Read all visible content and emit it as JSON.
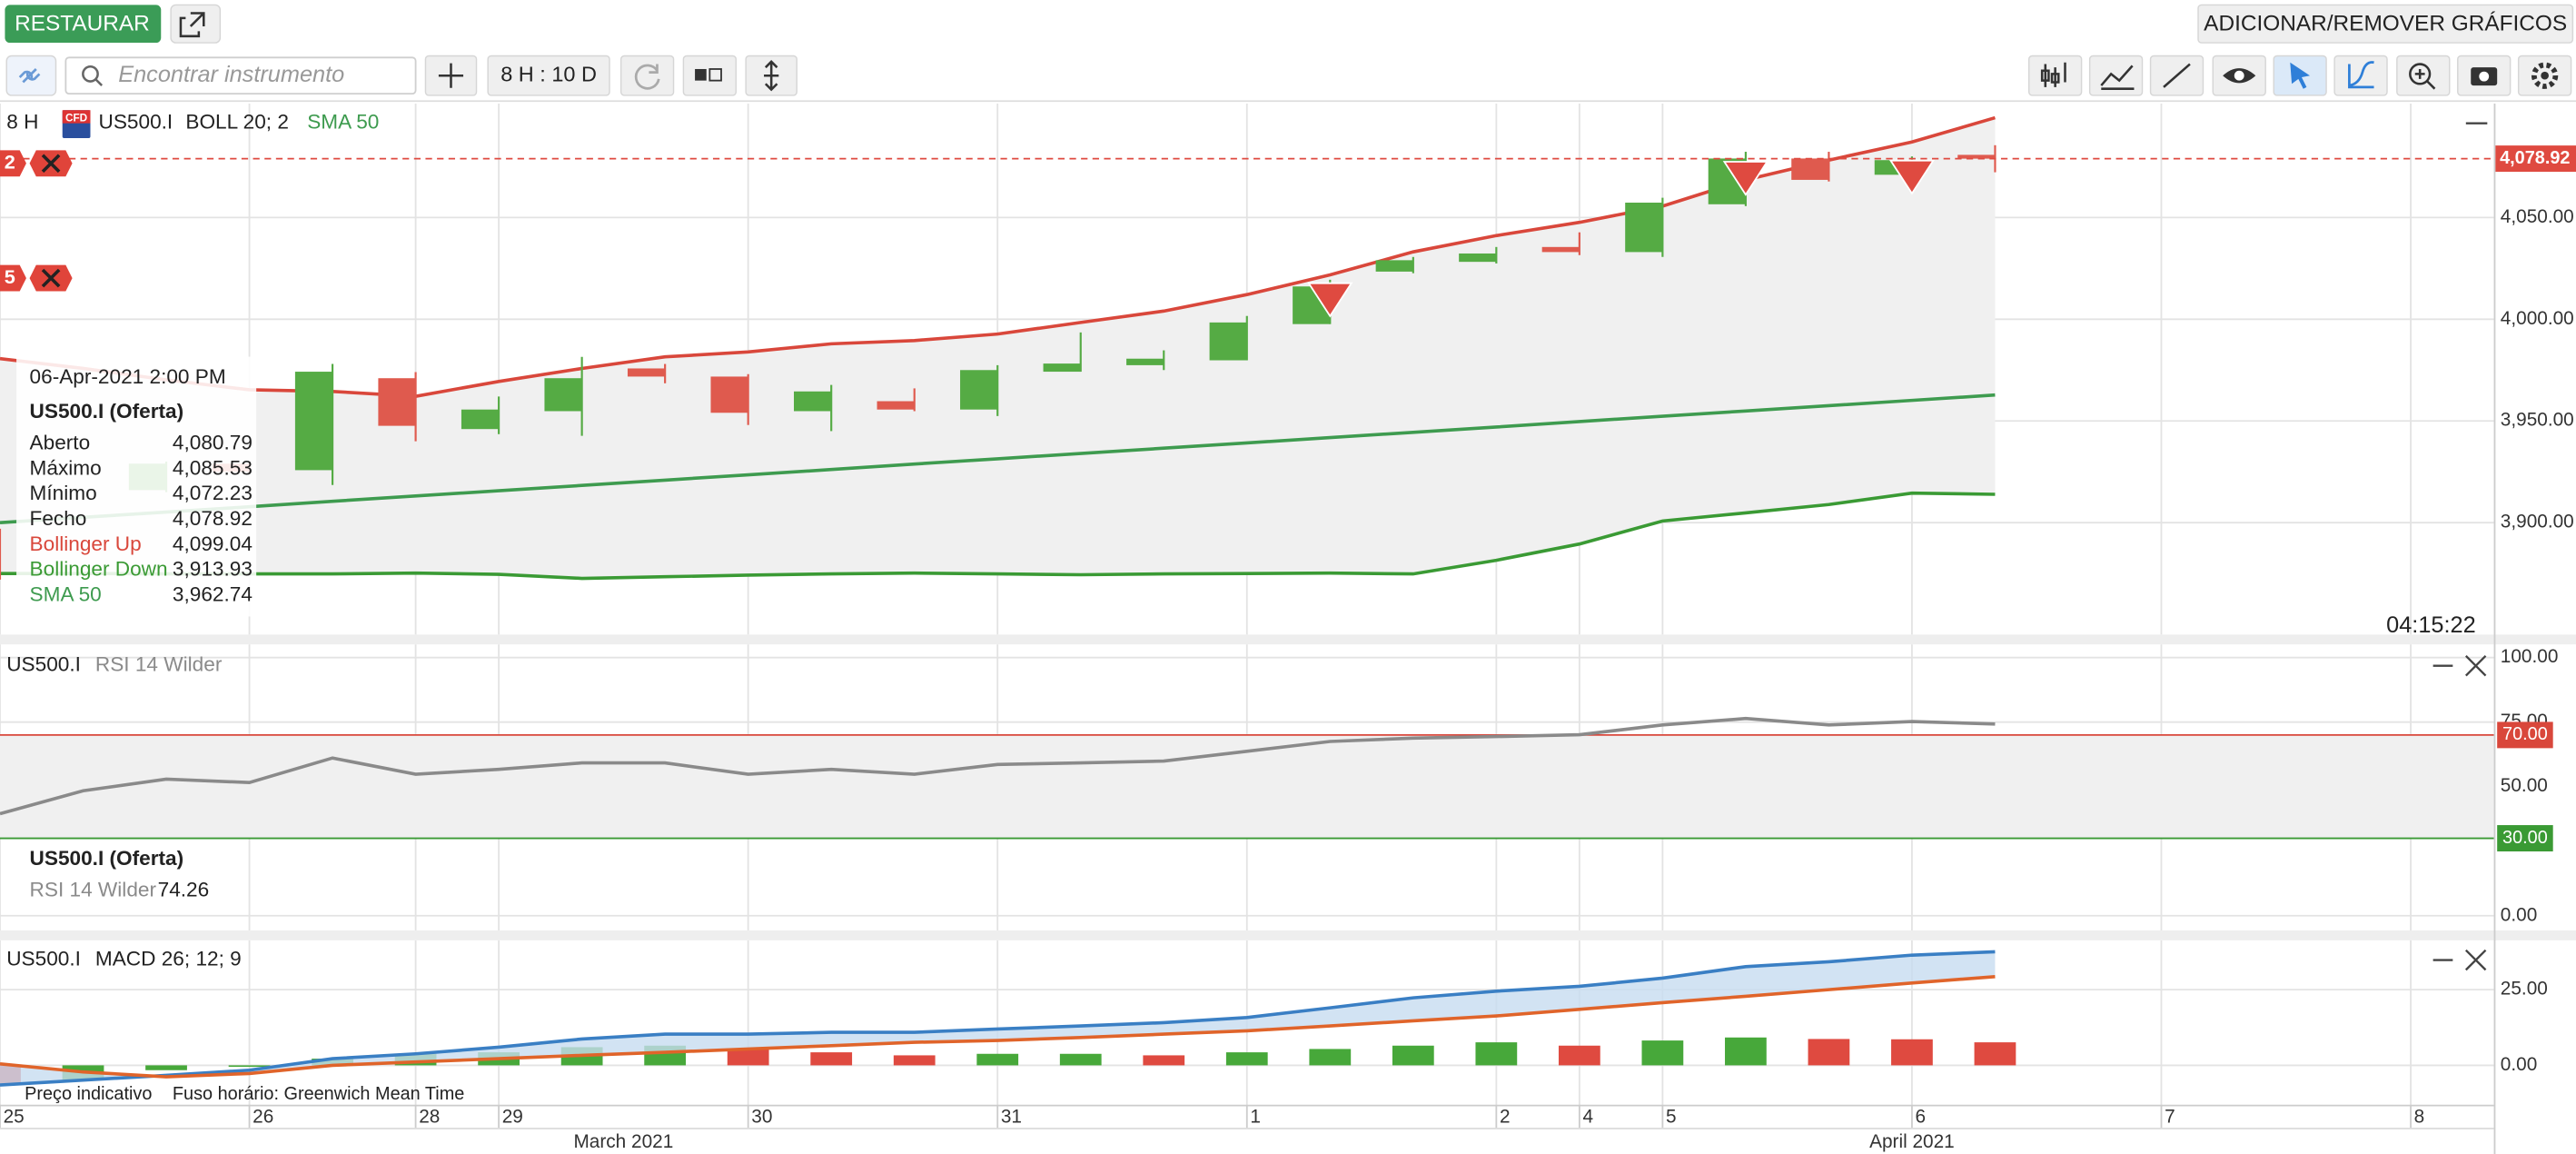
{
  "toolbar": {
    "restore": "RESTAURAR",
    "add_remove": "ADICIONAR/REMOVER GRÁFICOS",
    "search_placeholder": "Encontrar instrumento",
    "timeframe": "8 H : 10 D"
  },
  "chart_data": [
    {
      "type": "candlestick",
      "period": "8 H",
      "instrument_badge": "CFD",
      "symbol": "US500.I",
      "indicator": "BOLL 20; 2",
      "xlim": [
        -3,
        27
      ],
      "ylim": [
        3845,
        4106
      ],
      "yticks": [
        {
          "value": 4050,
          "label": "4,050.00"
        },
        {
          "value": 4000,
          "label": "4,000.00"
        },
        {
          "value": 3950,
          "label": "3,950.00"
        },
        {
          "value": 3900,
          "label": "3,900.00"
        }
      ],
      "grid": true,
      "candles": {
        "x": [
          -3,
          -1,
          0,
          1,
          2,
          3,
          4,
          5,
          6,
          7,
          8,
          9,
          10,
          11,
          12,
          13,
          14,
          15,
          16,
          17,
          18,
          19,
          20,
          21
        ],
        "open": [
          3894,
          3916,
          3929,
          3925.8,
          3971,
          3946,
          3954.8,
          3975.8,
          3971.8,
          3954.8,
          3959.7,
          3955.6,
          3974.2,
          3977.4,
          3979.8,
          3997.6,
          4023.4,
          4028.2,
          4035.5,
          4033,
          4056.5,
          4079,
          4071,
          4080.79
        ],
        "high": [
          3897,
          3930,
          3930,
          3978,
          3974,
          3962,
          3981.5,
          3978,
          3973,
          3967.7,
          3966,
          3977.4,
          3993.5,
          3984.7,
          4001.6,
          4019.4,
          4030.6,
          4035.5,
          4042.7,
          4059.7,
          4082.3,
          4082.3,
          4080,
          4085.53
        ],
        "low": [
          3872,
          3915,
          3924,
          3918.5,
          3940,
          3943.5,
          3942.7,
          3968.5,
          3948,
          3945,
          3954.8,
          3952.4,
          3974.2,
          3975,
          3979.8,
          3997.6,
          4022.6,
          4027.4,
          4031.5,
          4030.6,
          4055.6,
          4067.7,
          4067,
          4072.23
        ],
        "close": [
          3874,
          3929,
          3925,
          3974.2,
          3947.6,
          3955.6,
          3971,
          3971.8,
          3954,
          3964.5,
          3955.6,
          3975,
          3978.2,
          3980.6,
          3998.4,
          4016.1,
          4029,
          4032.3,
          4033,
          4057.3,
          4079,
          4068.5,
          4078.2,
          4078.92
        ],
        "up_color": "#55ab44",
        "down_color": "#df5a4e"
      },
      "x": [
        -3,
        -2,
        -1,
        0,
        1,
        2,
        3,
        4,
        5,
        6,
        7,
        8,
        9,
        10,
        11,
        12,
        13,
        14,
        15,
        16,
        17,
        18,
        19,
        20,
        21
      ],
      "band_color": "#f0f0f0",
      "series": [
        {
          "name": "Bollinger Up",
          "color": "#d9473b",
          "values": [
            3980.6,
            3975.8,
            3970.2,
            3965.3,
            3964.5,
            3962.1,
            3969.4,
            3975.8,
            3981.5,
            3983.9,
            3987.9,
            3989.5,
            3992.7,
            3998.4,
            4004,
            4012.1,
            4021.8,
            4033.1,
            4041.1,
            4047.6,
            4055.6,
            4068.5,
            4078.2,
            4087.1,
            4099.04
          ]
        },
        {
          "name": "Bollinger Down",
          "color": "#3a9a34",
          "values": [
            3875,
            3875,
            3874.8,
            3874.8,
            3874.8,
            3875.2,
            3874.6,
            3872.6,
            3873.4,
            3874.2,
            3874.8,
            3875.2,
            3874.8,
            3874.4,
            3874.8,
            3875,
            3875.2,
            3874.8,
            3881.5,
            3889.5,
            3900.8,
            3904.8,
            3908.9,
            3914.5,
            3913.93
          ]
        },
        {
          "name": "SMA 50",
          "color": "#3e9b4f",
          "values": [
            3900,
            3902.6,
            3905.2,
            3907.8,
            3910.5,
            3913.1,
            3915.7,
            3918.3,
            3920.9,
            3923.5,
            3926.1,
            3928.8,
            3931.4,
            3934,
            3936.6,
            3939.2,
            3941.8,
            3944.4,
            3947,
            3949.7,
            3952.3,
            3954.9,
            3957.5,
            3960.1,
            3962.74
          ]
        }
      ],
      "last_price": {
        "value": 4078.92,
        "label": "4,078.92",
        "color": "#df4a40"
      },
      "markers": [
        {
          "x": 13,
          "value": 4017.7
        },
        {
          "x": 18,
          "value": 4077.4
        },
        {
          "x": 20,
          "value": 4078
        }
      ],
      "marker_color": "#df4a40",
      "orders": [
        {
          "label": "2",
          "value": 4076.6
        },
        {
          "label": "5",
          "value": 4020.2
        }
      ],
      "order_color": "#e0443a",
      "countdown": "04:15:22",
      "tooltip": {
        "datetime": "06-Apr-2021 2:00 PM",
        "title": "US500.I (Oferta)",
        "ohlc": [
          {
            "label": "Aberto",
            "value": "4,080.79"
          },
          {
            "label": "Máximo",
            "value": "4,085.53"
          },
          {
            "label": "Mínimo",
            "value": "4,072.23"
          },
          {
            "label": "Fecho",
            "value": "4,078.92"
          }
        ],
        "indicator_values": [
          "4,099.04",
          "3,913.93",
          "3,962.74"
        ]
      }
    },
    {
      "type": "line",
      "symbol": "US500.I",
      "xlim": [
        -3,
        27
      ],
      "ylim": [
        -5.7,
        105.1
      ],
      "yticks": [
        {
          "value": 100,
          "label": "100.00"
        },
        {
          "value": 75,
          "label": "75.00"
        },
        {
          "value": 50,
          "label": "50.00"
        },
        {
          "value": 0,
          "label": "0.00"
        }
      ],
      "x": [
        -3,
        -2,
        -1,
        0,
        1,
        2,
        3,
        4,
        5,
        6,
        7,
        8,
        9,
        10,
        11,
        12,
        13,
        14,
        15,
        16,
        17,
        18,
        19,
        20,
        21
      ],
      "band_color": "#f0f0f0",
      "series": [
        {
          "name": "RSI 14 Wilder",
          "color": "#8a8a8a",
          "values": [
            39.5,
            48.4,
            52.9,
            51.6,
            61.1,
            54.8,
            56.7,
            59.2,
            59.2,
            54.8,
            56.7,
            54.8,
            58.6,
            59.2,
            59.9,
            63.7,
            67.5,
            68.8,
            69.4,
            70.1,
            73.9,
            76.4,
            73.9,
            75.2,
            74.26
          ]
        }
      ],
      "levels": [
        {
          "value": 70,
          "label": "70.00",
          "color": "#d9473b"
        },
        {
          "value": 30,
          "label": "30.00",
          "color": "#3a9a34"
        }
      ],
      "tooltip": {
        "title": "US500.I (Oferta)",
        "value": "74.26"
      }
    },
    {
      "type": "macd",
      "symbol": "US500.I",
      "indicator": "MACD 26; 12; 9",
      "xlim": [
        -3,
        27
      ],
      "ylim": [
        -13,
        41.3
      ],
      "yticks": [
        {
          "value": 25,
          "label": "25.00"
        },
        {
          "value": 0,
          "label": "0.00"
        }
      ],
      "x": [
        -3,
        -2,
        -1,
        0,
        1,
        2,
        3,
        4,
        5,
        6,
        7,
        8,
        9,
        10,
        11,
        12,
        13,
        14,
        15,
        16,
        17,
        18,
        19,
        20,
        21
      ],
      "fill_color": "#c7dcf0",
      "series": [
        {
          "color": "#3a7fc4",
          "values": [
            -6.5,
            -4.9,
            -3.3,
            -1.6,
            2.2,
            3.8,
            6,
            8.7,
            10.3,
            10.3,
            10.9,
            10.9,
            12,
            13,
            14.1,
            15.8,
            19,
            22.3,
            24.5,
            26.1,
            28.8,
            32.6,
            34.2,
            36.4,
            37.5
          ]
        },
        {
          "color": "#e0642a",
          "values": [
            0.5,
            -2.2,
            -3.8,
            -2.7,
            0,
            1.1,
            2.2,
            3.3,
            4.3,
            5.4,
            6.5,
            7.6,
            8.2,
            9.2,
            10.3,
            11.4,
            13,
            14.7,
            16.3,
            18.5,
            20.7,
            22.8,
            25,
            27.2,
            29.3
          ]
        }
      ],
      "histogram": {
        "values": [
          -6.5,
          -4.9,
          -1.6,
          -0.5,
          2.2,
          3.8,
          4.3,
          6,
          6.5,
          5.4,
          4.3,
          3.3,
          3.8,
          3.8,
          3.3,
          4.3,
          5.4,
          6.5,
          7.6,
          6.5,
          8.2,
          9.2,
          8.7,
          8.6,
          7.6
        ],
        "colors": [
          "#df4a40",
          "#47a83a",
          "#47a83a",
          "#47a83a",
          "#47a83a",
          "#47a83a",
          "#47a83a",
          "#47a83a",
          "#47a83a",
          "#df4a40",
          "#df4a40",
          "#df4a40",
          "#47a83a",
          "#47a83a",
          "#df4a40",
          "#47a83a",
          "#47a83a",
          "#47a83a",
          "#47a83a",
          "#df4a40",
          "#47a83a",
          "#47a83a",
          "#df4a40",
          "#df4a40",
          "#df4a40"
        ]
      },
      "xticks": [
        {
          "value": -3,
          "label": "25"
        },
        {
          "value": 0,
          "label": "26"
        },
        {
          "value": 2,
          "label": "28"
        },
        {
          "value": 3,
          "label": "29"
        },
        {
          "value": 6,
          "label": "30"
        },
        {
          "value": 9,
          "label": "31"
        },
        {
          "value": 12,
          "label": "1"
        },
        {
          "value": 15,
          "label": "2"
        },
        {
          "value": 16,
          "label": "4"
        },
        {
          "value": 17,
          "label": "5"
        },
        {
          "value": 20,
          "label": "6"
        },
        {
          "value": 23,
          "label": "7"
        },
        {
          "value": 26,
          "label": "8"
        }
      ],
      "month_ticks": [
        {
          "value": 4.5,
          "label": "March 2021"
        },
        {
          "value": 20,
          "label": "April 2021"
        }
      ]
    }
  ],
  "footer": [
    "Preço indicativo",
    "Fuso horário: Greenwich Mean Time"
  ]
}
